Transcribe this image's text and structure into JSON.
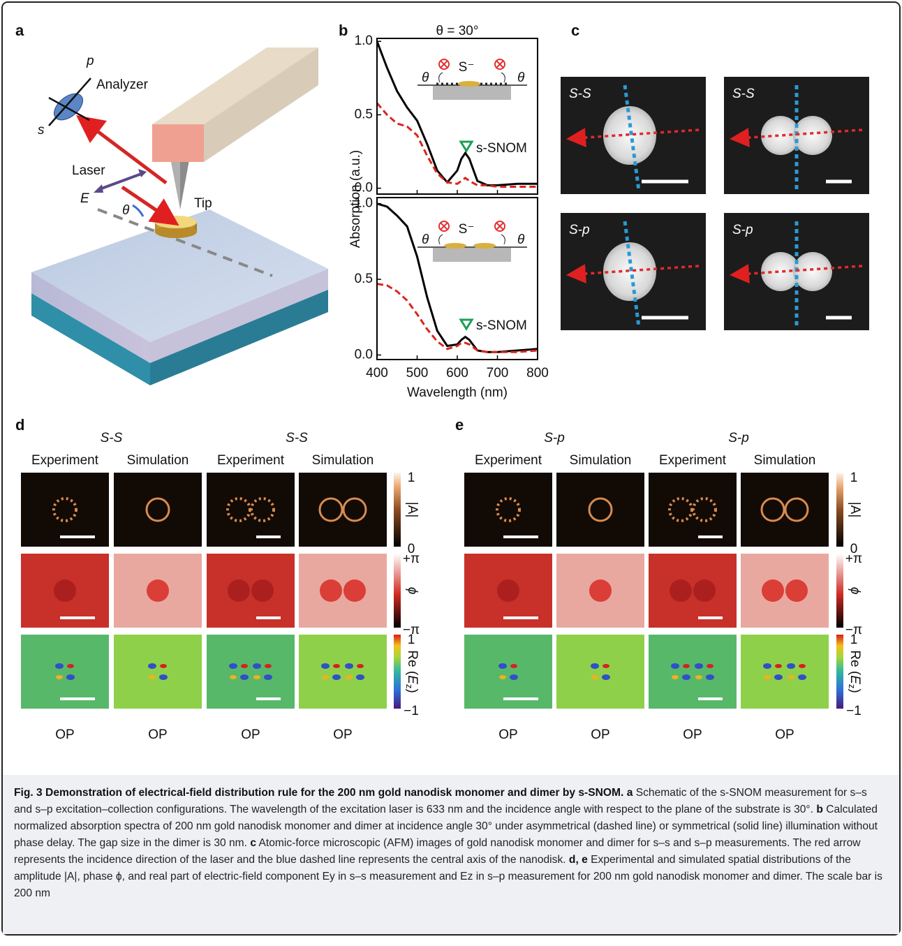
{
  "panel_a": {
    "letter": "a",
    "p": "p",
    "s": "s",
    "analyzer": "Analyzer",
    "laser": "Laser",
    "e": "E",
    "theta": "θ",
    "tip": "Tip"
  },
  "chart_data": [
    {
      "type": "line",
      "letter": "b",
      "title": "θ = 30°",
      "ylabel": "Absorption (a.u.)",
      "x": [
        400,
        425,
        450,
        475,
        500,
        525,
        550,
        575,
        600,
        610,
        620,
        630,
        650,
        675,
        700,
        750,
        800
      ],
      "series": [
        {
          "color": "#000000",
          "dash": false,
          "values": [
            1.0,
            0.82,
            0.66,
            0.55,
            0.46,
            0.3,
            0.12,
            0.04,
            0.12,
            0.2,
            0.24,
            0.2,
            0.05,
            0.02,
            0.02,
            0.03,
            0.03
          ]
        },
        {
          "color": "#d9261c",
          "dash": true,
          "values": [
            0.58,
            0.5,
            0.44,
            0.42,
            0.36,
            0.22,
            0.1,
            0.04,
            0.03,
            0.05,
            0.07,
            0.05,
            0.02,
            0.02,
            0.01,
            0.01,
            0.01
          ]
        }
      ],
      "xlim": [
        400,
        800
      ],
      "xticks": [
        400,
        500,
        600,
        700,
        800
      ],
      "ylim": [
        -0.04,
        1.02
      ],
      "yticks": [
        {
          "value": 0,
          "label": "0.0"
        },
        0.5,
        {
          "value": 1,
          "label": "1.0"
        }
      ],
      "annotations": [
        "S⁻",
        "θ",
        "θ",
        "s-SNOM"
      ]
    },
    {
      "type": "line",
      "xlabel": "Wavelength (nm)",
      "x": [
        400,
        425,
        450,
        475,
        500,
        525,
        550,
        575,
        600,
        610,
        620,
        630,
        650,
        675,
        700,
        750,
        800
      ],
      "series": [
        {
          "color": "#000000",
          "dash": false,
          "values": [
            1.0,
            0.98,
            0.92,
            0.85,
            0.65,
            0.38,
            0.16,
            0.06,
            0.07,
            0.1,
            0.12,
            0.1,
            0.03,
            0.02,
            0.02,
            0.03,
            0.04
          ]
        },
        {
          "color": "#d9261c",
          "dash": true,
          "values": [
            0.47,
            0.46,
            0.42,
            0.36,
            0.27,
            0.17,
            0.09,
            0.04,
            0.06,
            0.08,
            0.08,
            0.07,
            0.03,
            0.02,
            0.02,
            0.02,
            0.03
          ]
        }
      ],
      "xlim": [
        400,
        800
      ],
      "xticks": [
        400,
        500,
        600,
        700,
        800
      ],
      "ylim": [
        -0.03,
        1.04
      ],
      "yticks": [
        {
          "value": 0,
          "label": "0.0"
        },
        0.5,
        {
          "value": 1,
          "label": "1.0"
        }
      ],
      "annotations": [
        "S⁻",
        "θ",
        "θ",
        "s-SNOM"
      ]
    }
  ],
  "panel_c": {
    "letter": "c",
    "labels": [
      "S-S",
      "S-S",
      "S-p",
      "S-p"
    ]
  },
  "panel_d": {
    "letter": "d",
    "groups": [
      "S-S",
      "S-S"
    ],
    "columns": [
      "Experiment",
      "Simulation",
      "Experiment",
      "Simulation"
    ],
    "bottoms": [
      "OP",
      "OP",
      "OP",
      "OP"
    ],
    "colorbars": [
      {
        "top": "1",
        "bottom": "0",
        "label": [
          "|A|"
        ]
      },
      {
        "top": "+π",
        "bottom": "−π",
        "label": [
          "ϕ"
        ]
      },
      {
        "top": "1",
        "bottom": "−1",
        "label": [
          "Re (",
          "E",
          "z",
          ")"
        ]
      }
    ]
  },
  "panel_e": {
    "letter": "e",
    "groups": [
      "S-p",
      "S-p"
    ],
    "columns": [
      "Experiment",
      "Simulation",
      "Experiment",
      "Simulation"
    ],
    "bottoms": [
      "OP",
      "OP",
      "OP",
      "OP"
    ],
    "colorbars": [
      {
        "top": "1",
        "bottom": "0",
        "label": [
          "|A|"
        ]
      },
      {
        "top": "+π",
        "bottom": "−π",
        "label": [
          "ϕ"
        ]
      },
      {
        "top": "1",
        "bottom": "−1",
        "label": [
          "Re (",
          "E",
          "z",
          ")"
        ]
      }
    ]
  },
  "caption": {
    "title": "Fig. 3 Demonstration of electrical-field distribution rule for the 200 nm gold nanodisk monomer and dimer by s-SNOM.",
    "parts": [
      {
        "label": "a",
        "text": " Schematic of the s-SNOM measurement for s–s and s–p excitation–collection configurations. The wavelength of the excitation laser is 633 nm and the incidence angle with respect to the plane of the substrate is 30°. "
      },
      {
        "label": "b",
        "text": " Calculated normalized absorption spectra of 200 nm gold nanodisk monomer and dimer at incidence angle 30° under asymmetrical (dashed line) or symmetrical (solid line) illumination without phase delay. The gap size in the dimer is 30 nm. "
      },
      {
        "label": "c",
        "text": " Atomic-force microscopic (AFM) images of gold nanodisk monomer and dimer for s–s and s–p measurements. The red arrow represents the incidence direction of the laser and the blue dashed line represents the central axis of the nanodisk. "
      },
      {
        "label": "d, e",
        "text": " Experimental and simulated spatial distributions of the amplitude |A|, phase ϕ, and real part of electric-field component Ey in s–s measurement and Ez in s–p measurement for 200 nm gold nanodisk monomer and dimer. The scale bar is 200 nm"
      }
    ]
  }
}
